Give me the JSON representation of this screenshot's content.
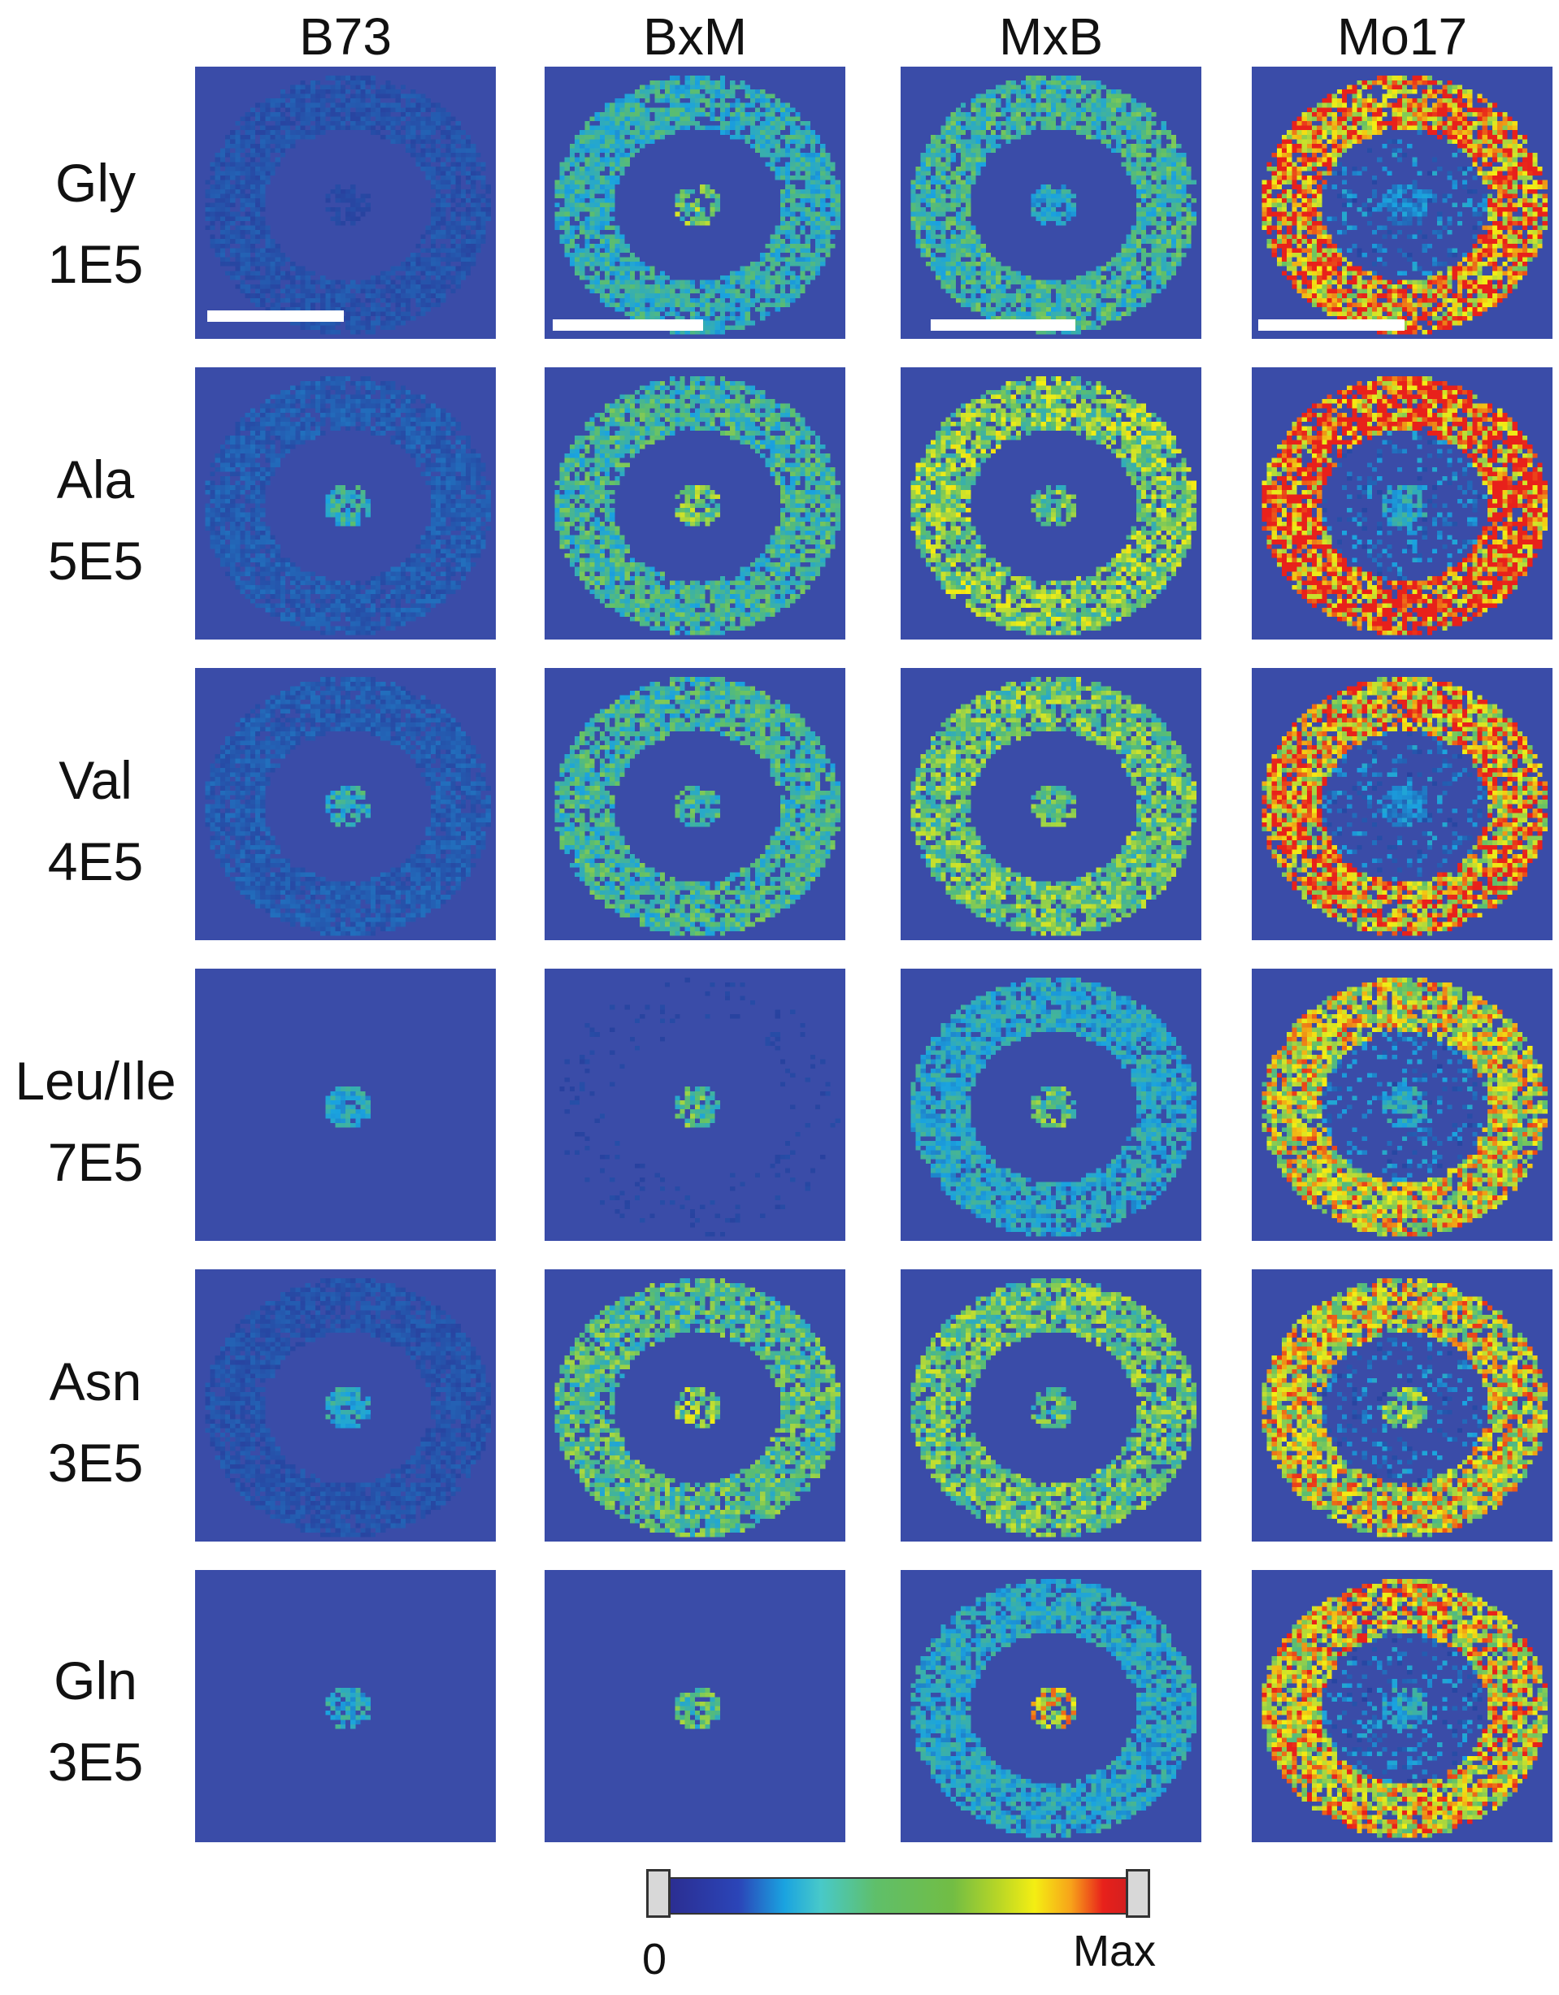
{
  "columns": [
    "B73",
    "BxM",
    "MxB",
    "Mo17"
  ],
  "rows": [
    {
      "analyte": "Gly",
      "scale": "1E5"
    },
    {
      "analyte": "Ala",
      "scale": "5E5"
    },
    {
      "analyte": "Val",
      "scale": "4E5"
    },
    {
      "analyte": "Leu/Ile",
      "scale": "7E5"
    },
    {
      "analyte": "Asn",
      "scale": "3E5"
    },
    {
      "analyte": "Gln",
      "scale": "3E5"
    }
  ],
  "colorbar": {
    "min_label": "0",
    "max_label": "Max"
  },
  "colors": {
    "background": "#3a4ca8",
    "colormap": [
      "#2b2e92",
      "#1aa3e0",
      "#5fbf6a",
      "#f4ee13",
      "#e8211b"
    ]
  }
}
